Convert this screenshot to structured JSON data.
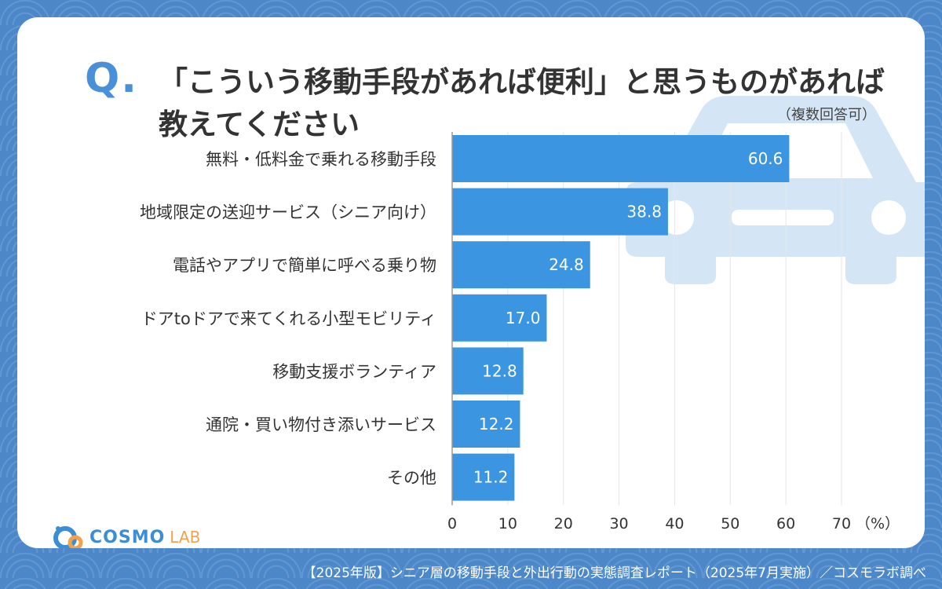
{
  "q_mark": "Q.",
  "title": "「こういう移動手段があれば便利」と思うものがあれば教えてください",
  "note": "（複数回答可）",
  "footer": "【2025年版】シニア層の移動手段と外出行動の実態調査レポート（2025年7月実施）／コスモラボ調べ",
  "logo": {
    "main": "COSMO",
    "sub": "LAB"
  },
  "colors": {
    "bar": "#3b95e0",
    "background": "#4a86c8",
    "text": "#333333",
    "grid": "#e6e6e6",
    "car": "#d4e6f6"
  },
  "chart_data": {
    "type": "bar",
    "orientation": "horizontal",
    "categories": [
      "無料・低料金で乗れる移動手段",
      "地域限定の送迎サービス（シニア向け）",
      "電話やアプリで簡単に呼べる乗り物",
      "ドアtoドアで来てくれる小型モビリティ",
      "移動支援ボランティア",
      "通院・買い物付き添いサービス",
      "その他"
    ],
    "values": [
      60.6,
      38.8,
      24.8,
      17.0,
      12.8,
      12.2,
      11.2
    ],
    "value_labels": [
      "60.6",
      "38.8",
      "24.8",
      "17.0",
      "12.8",
      "12.2",
      "11.2"
    ],
    "xlim": [
      0,
      70
    ],
    "xticks": [
      "0",
      "10",
      "20",
      "30",
      "40",
      "50",
      "60",
      "70"
    ],
    "unit_label": "（%）",
    "grid": true
  }
}
